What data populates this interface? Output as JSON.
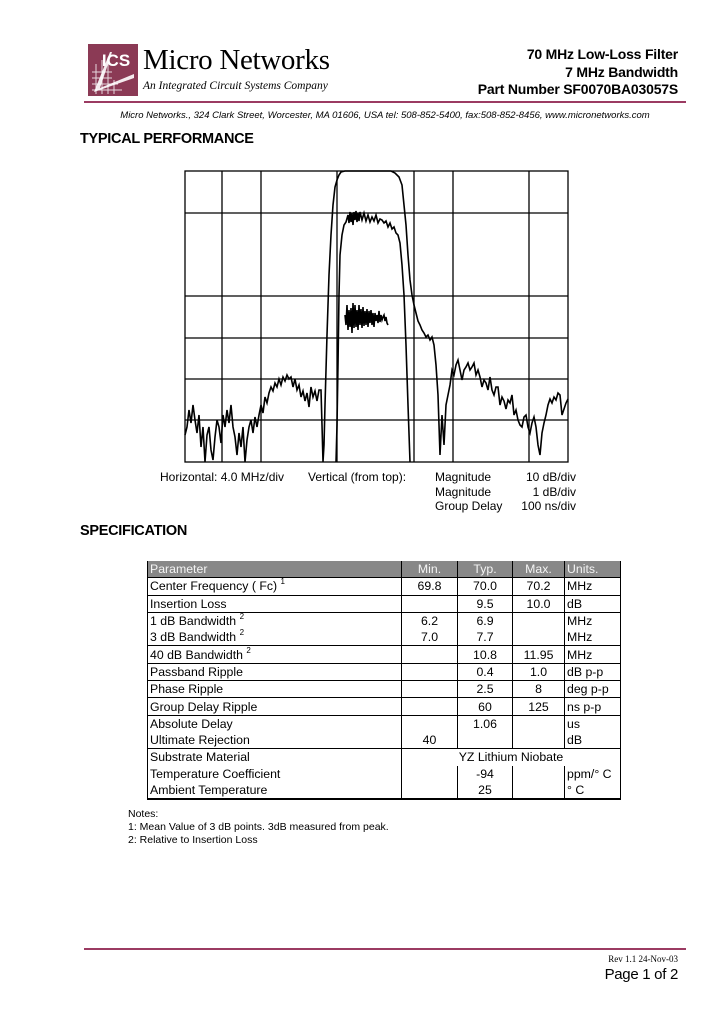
{
  "header": {
    "logo_text": "ICS",
    "brand": "Micro Networks",
    "tagline": "An Integrated Circuit Systems Company",
    "title_line1": "70 MHz Low-Loss Filter",
    "title_line2": "7 MHz Bandwidth",
    "title_line3": "Part Number SF0070BA03057S",
    "address": "Micro Networks., 324 Clark Street, Worcester, MA 01606, USA   tel: 508-852-5400,  fax:508-852-8456,  www.micronetworks.com",
    "accent_color": "#9b3b62"
  },
  "performance": {
    "heading": "TYPICAL PERFORMANCE",
    "horizontal_label": "Horizontal:  4.0 MHz/div",
    "vertical_label": "Vertical (from top):",
    "traces": [
      {
        "name": "Magnitude",
        "scale": "10 dB/div"
      },
      {
        "name": "Magnitude",
        "scale": "1 dB/div"
      },
      {
        "name": "Group Delay",
        "scale": "100 ns/div"
      }
    ]
  },
  "specification": {
    "heading": "SPECIFICATION",
    "columns": [
      "Parameter",
      "Min.",
      "Typ.",
      "Max.",
      "Units."
    ],
    "rows": [
      {
        "param": "Center Frequency ( Fc)",
        "note": "1",
        "min": "69.8",
        "typ": "70.0",
        "max": "70.2",
        "units": "MHz"
      },
      {
        "param": "Insertion Loss",
        "note": "",
        "min": "",
        "typ": "9.5",
        "max": "10.0",
        "units": "dB"
      },
      {
        "param": "1 dB Bandwidth",
        "note": "2",
        "min": "6.2",
        "typ": "6.9",
        "max": "",
        "units": "MHz"
      },
      {
        "param": "3 dB Bandwidth",
        "note": "2",
        "min": "7.0",
        "typ": "7.7",
        "max": "",
        "units": "MHz"
      },
      {
        "param": "40 dB Bandwidth",
        "note": "2",
        "min": "",
        "typ": "10.8",
        "max": "11.95",
        "units": "MHz"
      },
      {
        "param": "Passband Ripple",
        "note": "",
        "min": "",
        "typ": "0.4",
        "max": "1.0",
        "units": "dB p-p"
      },
      {
        "param": "Phase Ripple",
        "note": "",
        "min": "",
        "typ": "2.5",
        "max": "8",
        "units": "deg p-p"
      },
      {
        "param": "Group Delay Ripple",
        "note": "",
        "min": "",
        "typ": "60",
        "max": "125",
        "units": "ns p-p"
      },
      {
        "param": "Absolute Delay",
        "note": "",
        "min": "",
        "typ": "1.06",
        "max": "",
        "units": "us"
      },
      {
        "param": "Ultimate Rejection",
        "note": "",
        "min": "40",
        "typ": "",
        "max": "",
        "units": "dB"
      },
      {
        "param": "Substrate Material",
        "value": "YZ Lithium Niobate"
      },
      {
        "param": "Temperature Coefficient",
        "note": "",
        "min": "",
        "typ": "-94",
        "max": "",
        "units": "ppm/° C"
      },
      {
        "param": "Ambient Temperature",
        "note": "",
        "min": "",
        "typ": "25",
        "max": "",
        "units": "° C"
      }
    ]
  },
  "notes": {
    "heading": "Notes:",
    "items": [
      "1: Mean Value of 3 dB points. 3dB measured from peak.",
      "2: Relative to Insertion Loss"
    ]
  },
  "footer": {
    "revision": "Rev 1.1 24-Nov-03",
    "page": "Page 1 of 2"
  }
}
